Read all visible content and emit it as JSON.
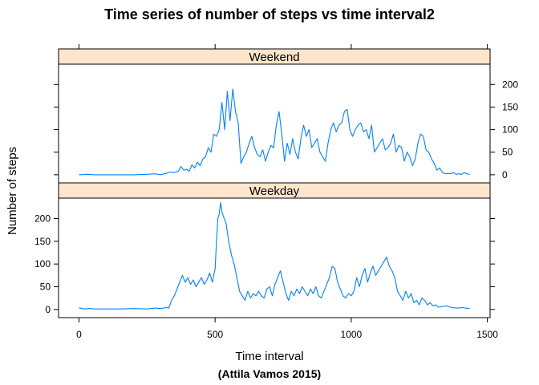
{
  "chart_data": {
    "type": "line",
    "title": "Time series of number of steps vs time interval2",
    "subtitle": "(Attila Vamos 2015)",
    "xlabel": "Time interval",
    "ylabel": "Number of steps",
    "xlim": [
      -75,
      1510
    ],
    "ylim": [
      -18,
      245
    ],
    "x_ticks": [
      0,
      500,
      1000,
      1500
    ],
    "y_ticks": [
      0,
      50,
      100,
      150,
      200
    ],
    "line_color": "#0080ff",
    "strip_color": "#ffe5cc",
    "panels": [
      {
        "name": "Weekend",
        "y_axis_side": "right",
        "points": [
          [
            0,
            0
          ],
          [
            30,
            1
          ],
          [
            60,
            0
          ],
          [
            100,
            0
          ],
          [
            150,
            0
          ],
          [
            200,
            0
          ],
          [
            250,
            1
          ],
          [
            280,
            2
          ],
          [
            300,
            0
          ],
          [
            320,
            3
          ],
          [
            335,
            6
          ],
          [
            350,
            5
          ],
          [
            365,
            8
          ],
          [
            375,
            18
          ],
          [
            385,
            10
          ],
          [
            395,
            12
          ],
          [
            405,
            8
          ],
          [
            415,
            22
          ],
          [
            425,
            15
          ],
          [
            435,
            28
          ],
          [
            445,
            20
          ],
          [
            455,
            35
          ],
          [
            465,
            40
          ],
          [
            475,
            60
          ],
          [
            485,
            50
          ],
          [
            495,
            90
          ],
          [
            505,
            85
          ],
          [
            515,
            100
          ],
          [
            525,
            160
          ],
          [
            535,
            100
          ],
          [
            545,
            185
          ],
          [
            555,
            120
          ],
          [
            565,
            190
          ],
          [
            575,
            140
          ],
          [
            585,
            115
          ],
          [
            595,
            25
          ],
          [
            605,
            40
          ],
          [
            615,
            50
          ],
          [
            625,
            70
          ],
          [
            635,
            85
          ],
          [
            645,
            60
          ],
          [
            655,
            45
          ],
          [
            665,
            40
          ],
          [
            675,
            55
          ],
          [
            685,
            30
          ],
          [
            695,
            50
          ],
          [
            705,
            65
          ],
          [
            715,
            60
          ],
          [
            725,
            110
          ],
          [
            735,
            140
          ],
          [
            745,
            90
          ],
          [
            755,
            30
          ],
          [
            765,
            70
          ],
          [
            775,
            45
          ],
          [
            785,
            80
          ],
          [
            795,
            50
          ],
          [
            805,
            35
          ],
          [
            815,
            80
          ],
          [
            825,
            110
          ],
          [
            835,
            85
          ],
          [
            845,
            100
          ],
          [
            855,
            60
          ],
          [
            865,
            70
          ],
          [
            875,
            80
          ],
          [
            885,
            50
          ],
          [
            895,
            40
          ],
          [
            905,
            30
          ],
          [
            915,
            70
          ],
          [
            925,
            100
          ],
          [
            935,
            115
          ],
          [
            945,
            95
          ],
          [
            955,
            110
          ],
          [
            965,
            115
          ],
          [
            975,
            140
          ],
          [
            985,
            145
          ],
          [
            995,
            100
          ],
          [
            1005,
            85
          ],
          [
            1015,
            100
          ],
          [
            1025,
            110
          ],
          [
            1035,
            115
          ],
          [
            1045,
            95
          ],
          [
            1055,
            100
          ],
          [
            1065,
            80
          ],
          [
            1075,
            110
          ],
          [
            1085,
            50
          ],
          [
            1095,
            60
          ],
          [
            1105,
            70
          ],
          [
            1115,
            80
          ],
          [
            1125,
            55
          ],
          [
            1135,
            60
          ],
          [
            1145,
            70
          ],
          [
            1155,
            90
          ],
          [
            1165,
            50
          ],
          [
            1175,
            65
          ],
          [
            1185,
            60
          ],
          [
            1195,
            30
          ],
          [
            1205,
            50
          ],
          [
            1215,
            40
          ],
          [
            1225,
            20
          ],
          [
            1235,
            35
          ],
          [
            1245,
            70
          ],
          [
            1255,
            90
          ],
          [
            1265,
            85
          ],
          [
            1275,
            55
          ],
          [
            1285,
            50
          ],
          [
            1295,
            35
          ],
          [
            1305,
            25
          ],
          [
            1315,
            10
          ],
          [
            1325,
            15
          ],
          [
            1335,
            5
          ],
          [
            1345,
            2
          ],
          [
            1355,
            3
          ],
          [
            1365,
            2
          ],
          [
            1375,
            5
          ],
          [
            1385,
            1
          ],
          [
            1395,
            2
          ],
          [
            1405,
            1
          ],
          [
            1415,
            5
          ],
          [
            1425,
            2
          ],
          [
            1435,
            1
          ]
        ]
      },
      {
        "name": "Weekday",
        "y_axis_side": "left",
        "points": [
          [
            0,
            3
          ],
          [
            20,
            1
          ],
          [
            40,
            2
          ],
          [
            60,
            1
          ],
          [
            100,
            1
          ],
          [
            150,
            1
          ],
          [
            200,
            2
          ],
          [
            250,
            1
          ],
          [
            280,
            3
          ],
          [
            300,
            2
          ],
          [
            320,
            4
          ],
          [
            330,
            3
          ],
          [
            340,
            20
          ],
          [
            350,
            30
          ],
          [
            360,
            45
          ],
          [
            370,
            60
          ],
          [
            380,
            75
          ],
          [
            390,
            60
          ],
          [
            400,
            70
          ],
          [
            410,
            55
          ],
          [
            420,
            65
          ],
          [
            430,
            50
          ],
          [
            440,
            60
          ],
          [
            450,
            70
          ],
          [
            460,
            55
          ],
          [
            470,
            65
          ],
          [
            480,
            80
          ],
          [
            490,
            60
          ],
          [
            500,
            90
          ],
          [
            505,
            150
          ],
          [
            510,
            200
          ],
          [
            515,
            210
          ],
          [
            520,
            235
          ],
          [
            525,
            215
          ],
          [
            530,
            205
          ],
          [
            540,
            190
          ],
          [
            550,
            150
          ],
          [
            560,
            120
          ],
          [
            570,
            100
          ],
          [
            580,
            70
          ],
          [
            590,
            40
          ],
          [
            600,
            30
          ],
          [
            610,
            20
          ],
          [
            620,
            40
          ],
          [
            630,
            25
          ],
          [
            640,
            35
          ],
          [
            650,
            30
          ],
          [
            660,
            40
          ],
          [
            670,
            30
          ],
          [
            680,
            25
          ],
          [
            690,
            45
          ],
          [
            700,
            50
          ],
          [
            710,
            30
          ],
          [
            720,
            55
          ],
          [
            730,
            70
          ],
          [
            740,
            85
          ],
          [
            750,
            60
          ],
          [
            760,
            35
          ],
          [
            770,
            20
          ],
          [
            780,
            40
          ],
          [
            790,
            30
          ],
          [
            800,
            45
          ],
          [
            810,
            35
          ],
          [
            820,
            50
          ],
          [
            830,
            40
          ],
          [
            840,
            30
          ],
          [
            850,
            45
          ],
          [
            860,
            35
          ],
          [
            870,
            50
          ],
          [
            880,
            30
          ],
          [
            890,
            25
          ],
          [
            900,
            40
          ],
          [
            910,
            55
          ],
          [
            920,
            70
          ],
          [
            930,
            95
          ],
          [
            940,
            90
          ],
          [
            950,
            60
          ],
          [
            960,
            45
          ],
          [
            970,
            30
          ],
          [
            980,
            25
          ],
          [
            990,
            35
          ],
          [
            1000,
            30
          ],
          [
            1010,
            40
          ],
          [
            1020,
            70
          ],
          [
            1030,
            50
          ],
          [
            1040,
            75
          ],
          [
            1050,
            90
          ],
          [
            1060,
            60
          ],
          [
            1070,
            80
          ],
          [
            1080,
            95
          ],
          [
            1090,
            75
          ],
          [
            1100,
            85
          ],
          [
            1110,
            95
          ],
          [
            1120,
            105
          ],
          [
            1130,
            115
          ],
          [
            1140,
            95
          ],
          [
            1150,
            85
          ],
          [
            1160,
            70
          ],
          [
            1170,
            40
          ],
          [
            1180,
            30
          ],
          [
            1190,
            20
          ],
          [
            1200,
            40
          ],
          [
            1210,
            25
          ],
          [
            1220,
            35
          ],
          [
            1230,
            15
          ],
          [
            1240,
            20
          ],
          [
            1250,
            10
          ],
          [
            1260,
            25
          ],
          [
            1270,
            20
          ],
          [
            1280,
            10
          ],
          [
            1290,
            15
          ],
          [
            1300,
            8
          ],
          [
            1310,
            10
          ],
          [
            1320,
            5
          ],
          [
            1330,
            6
          ],
          [
            1350,
            8
          ],
          [
            1370,
            4
          ],
          [
            1390,
            3
          ],
          [
            1410,
            4
          ],
          [
            1430,
            2
          ],
          [
            1435,
            3
          ]
        ]
      }
    ]
  }
}
